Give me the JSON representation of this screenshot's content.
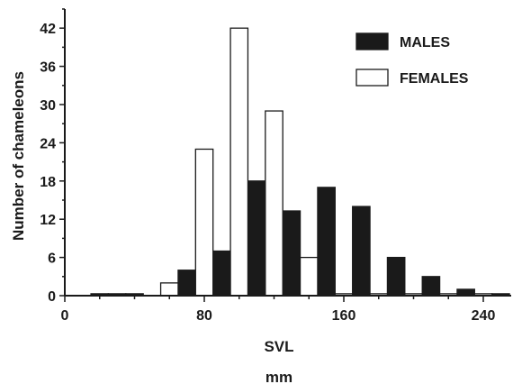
{
  "chart_data": {
    "type": "bar",
    "title": "",
    "xlabel": "SVL",
    "xunit": "mm",
    "ylabel": "Number of chameleons",
    "xlim": [
      0,
      256
    ],
    "ylim": [
      0,
      45
    ],
    "xticks": [
      0,
      80,
      160,
      240
    ],
    "yticks": [
      0,
      6,
      12,
      18,
      24,
      30,
      36,
      42
    ],
    "bin_width": 10,
    "legend_position": "top-right",
    "categories": [
      20,
      30,
      40,
      50,
      60,
      70,
      80,
      90,
      100,
      110,
      120,
      130,
      140,
      150,
      160,
      170,
      180,
      190,
      200,
      210,
      220,
      230,
      240,
      250
    ],
    "series": [
      {
        "name": "MALES",
        "color": "#1a1a1a",
        "values": [
          0.3,
          0.3,
          0.3,
          0,
          0,
          4,
          0,
          7,
          0,
          18,
          0,
          13.3,
          0,
          17,
          0,
          14,
          0,
          6,
          0,
          3,
          0,
          1,
          0,
          0.3
        ]
      },
      {
        "name": "FEMALES",
        "color": "#ffffff",
        "values": [
          0,
          0,
          0,
          0,
          2,
          0,
          23,
          0,
          42,
          0,
          29,
          0,
          6,
          0,
          0.3,
          0,
          0.3,
          0,
          0.3,
          0,
          0.3,
          0,
          0.3,
          0
        ]
      }
    ]
  }
}
